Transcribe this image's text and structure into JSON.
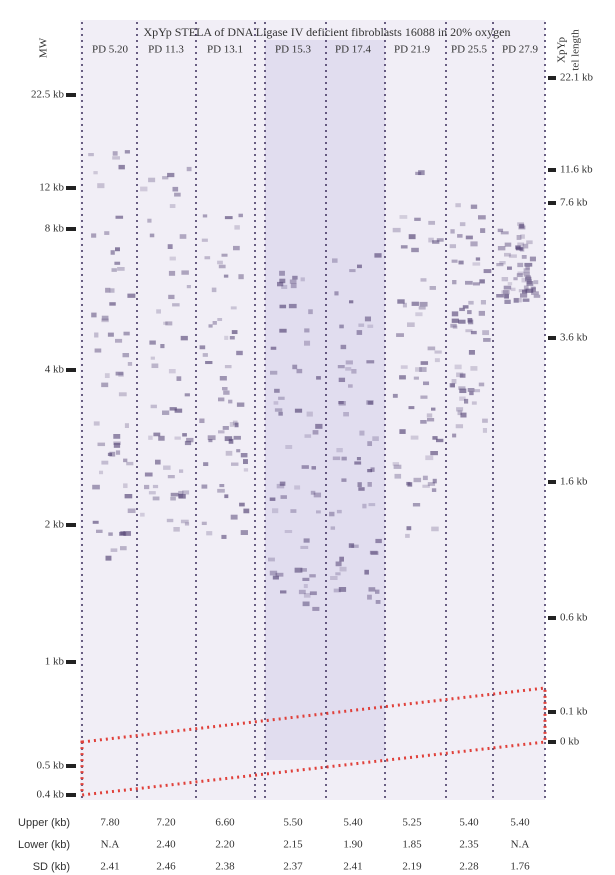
{
  "title": "XpYp STELA of DNA Ligase IV deficient fibroblasts 16088 in 20% oxygen",
  "left_label": "MW",
  "right_label": [
    "XpYp",
    "tel length"
  ],
  "lanes": [
    "PD 5.20",
    "PD 11.3",
    "PD 13.1",
    "PD 15.3",
    "PD 17.4",
    "PD 21.9",
    "PD 25.5",
    "PD 27.9"
  ],
  "left_markers": [
    "22.5 kb",
    "12 kb",
    "8 kb",
    "4 kb",
    "2 kb",
    "1 kb",
    "0.5 kb",
    "0.4 kb"
  ],
  "right_markers": [
    "22.1 kb",
    "11.6 kb",
    "7.6 kb",
    "3.6 kb",
    "1.6 kb",
    "0.6 kb",
    "0.1 kb",
    "0 kb"
  ],
  "table": {
    "row_headers": [
      "Upper (kb)",
      "Lower (kb)",
      "SD (kb)"
    ],
    "rows": [
      [
        "7.80",
        "7.20",
        "6.60",
        "5.50",
        "5.40",
        "5.25",
        "5.40",
        "5.40"
      ],
      [
        "N.A",
        "2.40",
        "2.20",
        "2.15",
        "1.90",
        "1.85",
        "2.35",
        "N.A"
      ],
      [
        "2.41",
        "2.46",
        "2.38",
        "2.37",
        "2.41",
        "2.19",
        "2.28",
        "1.76"
      ]
    ]
  }
}
